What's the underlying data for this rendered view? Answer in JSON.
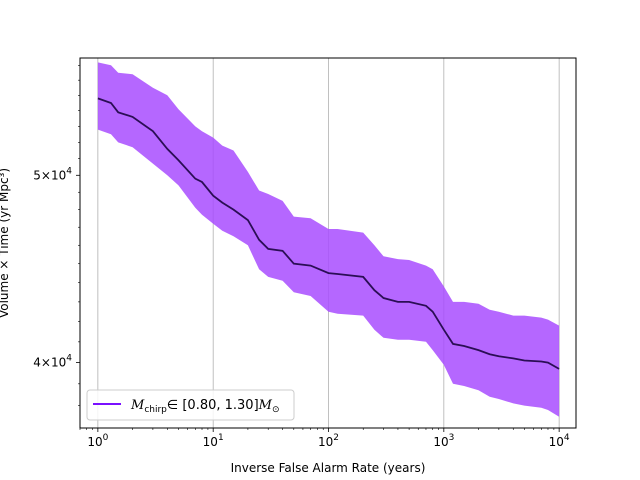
{
  "chart_data": {
    "type": "line",
    "x_scale": "log",
    "y_scale": "log",
    "xlabel": "Inverse False Alarm Rate (years)",
    "ylabel": "Volume × Time (yr Mpc³)",
    "xlim": [
      0.7,
      14000
    ],
    "ylim": [
      37000,
      57500
    ],
    "grid": "vertical lines at major x ticks",
    "legend_placement": "lower-left",
    "x_ticks": [
      {
        "value": 1,
        "base": "10",
        "exp": "0"
      },
      {
        "value": 10,
        "base": "10",
        "exp": "1"
      },
      {
        "value": 100,
        "base": "10",
        "exp": "2"
      },
      {
        "value": 1000,
        "base": "10",
        "exp": "3"
      },
      {
        "value": 10000,
        "base": "10",
        "exp": "4"
      }
    ],
    "y_ticks": [
      {
        "value": 40000,
        "mantissa": "4",
        "base": "10",
        "exp": "4"
      },
      {
        "value": 50000,
        "mantissa": "5",
        "base": "10",
        "exp": "4"
      }
    ],
    "series": [
      {
        "name_main": "M",
        "name_sub": "chirp",
        "name_range": "∈ [0.80, 1.30]",
        "name_unit_main": "M",
        "name_unit_sub": "⊙",
        "line_color": "#2b0e55",
        "band_color": "#a84cff",
        "legend_color": "#7a10ff",
        "x": [
          1,
          1.3,
          1.5,
          2,
          3,
          4,
          5,
          7,
          8,
          10,
          12,
          15,
          20,
          25,
          30,
          40,
          50,
          70,
          100,
          120,
          200,
          250,
          300,
          400,
          500,
          700,
          800,
          1000,
          1200,
          1500,
          2000,
          2500,
          3000,
          4000,
          5000,
          7000,
          8000,
          10000
        ],
        "y": [
          54800,
          54500,
          53900,
          53600,
          52700,
          51600,
          50900,
          49800,
          49600,
          48800,
          48400,
          48000,
          47400,
          46300,
          45800,
          45700,
          45000,
          44900,
          44500,
          44450,
          44300,
          43600,
          43200,
          43000,
          43000,
          42800,
          42500,
          41600,
          40900,
          40800,
          40600,
          40400,
          40300,
          40200,
          40100,
          40050,
          40000,
          39700
        ],
        "upper": [
          57200,
          57000,
          56500,
          56400,
          55500,
          55000,
          54100,
          53000,
          52700,
          52300,
          51800,
          51500,
          50200,
          49100,
          48900,
          48500,
          47600,
          47500,
          46900,
          46900,
          46700,
          46000,
          45400,
          45250,
          45200,
          44900,
          44700,
          43800,
          43000,
          43000,
          42900,
          42600,
          42500,
          42300,
          42300,
          42200,
          42100,
          41800
        ],
        "lower": [
          52800,
          52500,
          52000,
          51700,
          50700,
          50000,
          49400,
          48100,
          47700,
          47200,
          46800,
          46500,
          46000,
          44700,
          44300,
          44100,
          43500,
          43300,
          42500,
          42400,
          42300,
          41600,
          41200,
          41100,
          41100,
          41000,
          40600,
          39900,
          39000,
          38900,
          38700,
          38400,
          38300,
          38100,
          38000,
          37900,
          37800,
          37500
        ]
      }
    ]
  }
}
